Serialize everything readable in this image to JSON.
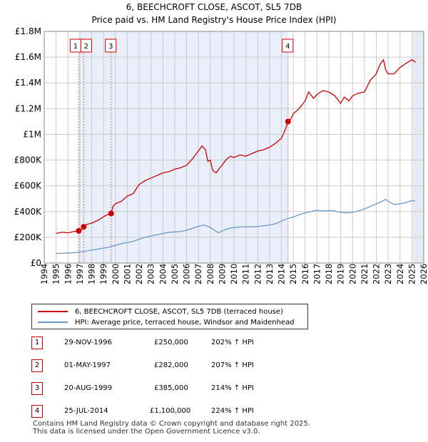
{
  "title": {
    "line1": "6, BEECHCROFT CLOSE, ASCOT, SL5 7DB",
    "line2": "Price paid vs. HM Land Registry's House Price Index (HPI)"
  },
  "colors": {
    "price_line": "#cc0000",
    "hpi_line": "#6b97c8",
    "shade": "#e8eefa",
    "grid": "#cccccc",
    "marker_dash": "#e07070"
  },
  "chart_data": {
    "type": "line",
    "title": "Price paid vs. HM Land Registry's House Price Index (HPI)",
    "xlabel": "",
    "ylabel": "",
    "xlim": [
      1994,
      2026
    ],
    "ylim": [
      0,
      1800000
    ],
    "x_ticks": [
      "1994",
      "1995",
      "1996",
      "1997",
      "1998",
      "1999",
      "2000",
      "2001",
      "2002",
      "2003",
      "2004",
      "2005",
      "2006",
      "2007",
      "2008",
      "2009",
      "2010",
      "2011",
      "2012",
      "2013",
      "2014",
      "2015",
      "2016",
      "2017",
      "2018",
      "2019",
      "2020",
      "2021",
      "2022",
      "2023",
      "2024",
      "2025",
      "2026"
    ],
    "y_ticks": [
      {
        "value": 0,
        "label": "£0"
      },
      {
        "value": 200000,
        "label": "£200K"
      },
      {
        "value": 400000,
        "label": "£400K"
      },
      {
        "value": 600000,
        "label": "£600K"
      },
      {
        "value": 800000,
        "label": "£800K"
      },
      {
        "value": 1000000,
        "label": "£1M"
      },
      {
        "value": 1200000,
        "label": "£1.2M"
      },
      {
        "value": 1400000,
        "label": "£1.4M"
      },
      {
        "value": 1600000,
        "label": "£1.6M"
      },
      {
        "value": 1800000,
        "label": "£1.8M"
      }
    ],
    "shaded_ranges": [
      [
        1996.91,
        2014.56
      ],
      [
        2025.0,
        2026.0
      ]
    ],
    "series": [
      {
        "name": "6, BEECHCROFT CLOSE, ASCOT, SL5 7DB (terraced house)",
        "x": [
          1995.0,
          1995.5,
          1996.0,
          1996.5,
          1996.91,
          1997.0,
          1997.33,
          1997.6,
          1998.0,
          1998.5,
          1999.0,
          1999.3,
          1999.64,
          1999.8,
          2000.0,
          2000.5,
          2001.0,
          2001.5,
          2002.0,
          2002.5,
          2003.0,
          2003.5,
          2004.0,
          2004.5,
          2005.0,
          2005.5,
          2006.0,
          2006.5,
          2007.0,
          2007.3,
          2007.6,
          2007.8,
          2008.0,
          2008.2,
          2008.5,
          2008.8,
          2009.0,
          2009.3,
          2009.7,
          2010.0,
          2010.5,
          2011.0,
          2011.5,
          2012.0,
          2012.5,
          2013.0,
          2013.5,
          2014.0,
          2014.3,
          2014.56,
          2014.8,
          2015.0,
          2015.5,
          2016.0,
          2016.3,
          2016.7,
          2017.0,
          2017.5,
          2018.0,
          2018.5,
          2019.0,
          2019.3,
          2019.7,
          2020.0,
          2020.5,
          2021.0,
          2021.5,
          2022.0,
          2022.3,
          2022.6,
          2022.8,
          2023.0,
          2023.5,
          2024.0,
          2024.5,
          2025.0,
          2025.3
        ],
        "values": [
          230000,
          240000,
          235000,
          245000,
          250000,
          245000,
          282000,
          300000,
          310000,
          330000,
          360000,
          375000,
          385000,
          440000,
          460000,
          480000,
          520000,
          540000,
          610000,
          640000,
          660000,
          680000,
          700000,
          710000,
          730000,
          740000,
          760000,
          810000,
          870000,
          910000,
          880000,
          790000,
          800000,
          720000,
          700000,
          740000,
          760000,
          800000,
          830000,
          820000,
          840000,
          830000,
          850000,
          870000,
          880000,
          900000,
          930000,
          970000,
          1030000,
          1100000,
          1120000,
          1160000,
          1200000,
          1260000,
          1330000,
          1280000,
          1310000,
          1340000,
          1330000,
          1300000,
          1240000,
          1290000,
          1260000,
          1300000,
          1320000,
          1330000,
          1420000,
          1470000,
          1540000,
          1580000,
          1500000,
          1470000,
          1470000,
          1520000,
          1550000,
          1580000,
          1560000
        ]
      },
      {
        "name": "HPI: Average price, terraced house, Windsor and Maidenhead",
        "x": [
          1995.0,
          1995.5,
          1996.0,
          1996.5,
          1997.0,
          1997.5,
          1998.0,
          1998.5,
          1999.0,
          1999.5,
          2000.0,
          2000.5,
          2001.0,
          2001.5,
          2002.0,
          2002.5,
          2003.0,
          2003.5,
          2004.0,
          2004.5,
          2005.0,
          2005.5,
          2006.0,
          2006.5,
          2007.0,
          2007.5,
          2007.9,
          2008.3,
          2008.7,
          2009.0,
          2009.5,
          2010.0,
          2010.5,
          2011.0,
          2011.5,
          2012.0,
          2012.5,
          2013.0,
          2013.5,
          2014.0,
          2014.5,
          2015.0,
          2015.5,
          2016.0,
          2016.5,
          2017.0,
          2017.5,
          2018.0,
          2018.5,
          2019.0,
          2019.5,
          2020.0,
          2020.5,
          2021.0,
          2021.5,
          2022.0,
          2022.5,
          2022.8,
          2023.0,
          2023.5,
          2024.0,
          2024.5,
          2025.0,
          2025.3
        ],
        "values": [
          75000,
          76000,
          78000,
          81000,
          86000,
          92000,
          100000,
          108000,
          116000,
          125000,
          138000,
          150000,
          160000,
          168000,
          185000,
          200000,
          210000,
          220000,
          230000,
          238000,
          242000,
          245000,
          255000,
          270000,
          285000,
          295000,
          282000,
          258000,
          235000,
          250000,
          268000,
          275000,
          280000,
          282000,
          282000,
          284000,
          290000,
          295000,
          305000,
          325000,
          345000,
          358000,
          375000,
          390000,
          400000,
          410000,
          405000,
          408000,
          405000,
          395000,
          390000,
          395000,
          405000,
          420000,
          440000,
          460000,
          480000,
          495000,
          480000,
          455000,
          460000,
          470000,
          485000,
          480000
        ]
      }
    ],
    "annotations": [
      {
        "label": "1",
        "x": 1996.91,
        "value": 250000
      },
      {
        "label": "2",
        "x": 1997.33,
        "value": 282000
      },
      {
        "label": "3",
        "x": 1999.64,
        "value": 385000
      },
      {
        "label": "4",
        "x": 2014.56,
        "value": 1100000
      }
    ]
  },
  "legend": {
    "items": [
      {
        "label": "6, BEECHCROFT CLOSE, ASCOT, SL5 7DB (terraced house)"
      },
      {
        "label": "HPI: Average price, terraced house, Windsor and Maidenhead"
      }
    ]
  },
  "transactions": [
    {
      "num": "1",
      "date": "29-NOV-1996",
      "price": "£250,000",
      "hpi": "202% ↑ HPI"
    },
    {
      "num": "2",
      "date": "01-MAY-1997",
      "price": "£282,000",
      "hpi": "207% ↑ HPI"
    },
    {
      "num": "3",
      "date": "20-AUG-1999",
      "price": "£385,000",
      "hpi": "214% ↑ HPI"
    },
    {
      "num": "4",
      "date": "25-JUL-2014",
      "price": "£1,100,000",
      "hpi": "224% ↑ HPI"
    }
  ],
  "footer": {
    "line1": "Contains HM Land Registry data © Crown copyright and database right 2025.",
    "line2": "This data is licensed under the Open Government Licence v3.0."
  }
}
